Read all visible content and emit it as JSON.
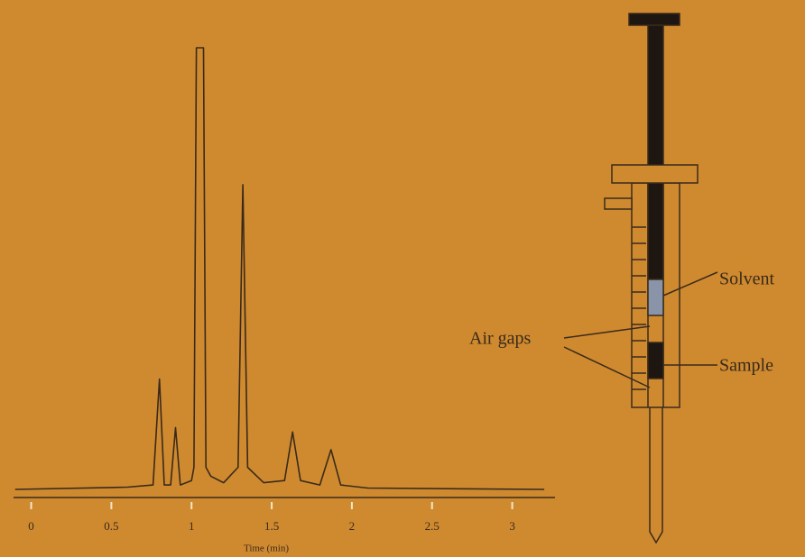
{
  "chart_data": {
    "type": "line",
    "x_label": "Time (min)",
    "x": [
      -0.1,
      0.6,
      0.76,
      0.8,
      0.83,
      0.87,
      0.9,
      0.93,
      1.0,
      1.015,
      1.03,
      1.075,
      1.09,
      1.12,
      1.2,
      1.29,
      1.32,
      1.35,
      1.45,
      1.58,
      1.63,
      1.68,
      1.8,
      1.87,
      1.93,
      2.1,
      3.2
    ],
    "values": [
      0,
      0.5,
      1,
      25,
      1,
      1,
      14,
      1,
      2,
      5,
      100,
      100,
      5,
      3,
      1.5,
      5,
      69,
      5,
      1.5,
      2,
      13,
      2,
      1,
      9,
      1,
      0.3,
      0
    ],
    "color": "#3a2a1a",
    "xlim": [
      -0.11,
      3.25
    ],
    "ylim": [
      0,
      100
    ],
    "xticks": [
      0,
      0.5,
      1,
      1.5,
      2,
      2.5,
      3
    ],
    "annotations": [
      "Solvent",
      "Air gaps",
      "Sample"
    ]
  }
}
